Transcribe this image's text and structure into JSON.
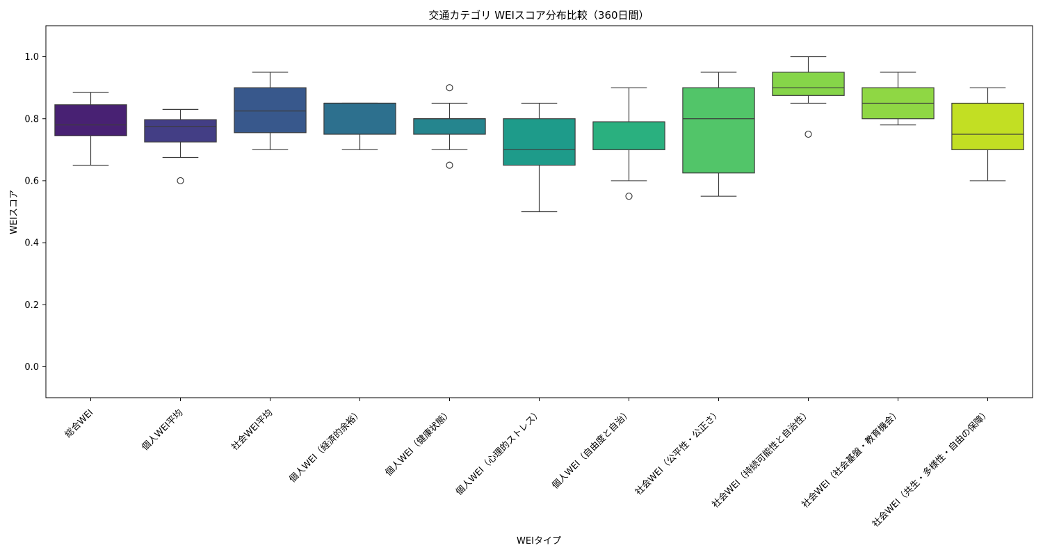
{
  "chart_data": {
    "type": "box",
    "title": "交通カテゴリ WEIスコア分布比較（360日間）",
    "xlabel": "WEIタイプ",
    "ylabel": "WEIスコア",
    "ylim": [
      -0.1,
      1.1
    ],
    "yticks": [
      "0.0",
      "0.2",
      "0.4",
      "0.6",
      "0.8",
      "1.0"
    ],
    "grid": false,
    "legend": "none",
    "categories": [
      "総合WEI",
      "個人WEI平均",
      "社会WEI平均",
      "個人WEI（経済的余裕）",
      "個人WEI（健康状態）",
      "個人WEI（心理的ストレス）",
      "個人WEI（自由度と自治）",
      "社会WEI（公平性・公正さ）",
      "社会WEI（持続可能性と自治性）",
      "社会WEI（社会基盤・教育機会）",
      "社会WEI（共生・多様性・自由の保障）"
    ],
    "boxes": [
      {
        "whisker_low": 0.65,
        "q1": 0.745,
        "median": 0.78,
        "q3": 0.845,
        "whisker_high": 0.885,
        "outliers": [],
        "color": "#482173"
      },
      {
        "whisker_low": 0.675,
        "q1": 0.725,
        "median": 0.775,
        "q3": 0.797,
        "whisker_high": 0.83,
        "outliers": [
          0.6
        ],
        "color": "#433e85"
      },
      {
        "whisker_low": 0.7,
        "q1": 0.755,
        "median": 0.825,
        "q3": 0.9,
        "whisker_high": 0.95,
        "outliers": [],
        "color": "#38588c"
      },
      {
        "whisker_low": 0.7,
        "q1": 0.75,
        "median": 0.85,
        "q3": 0.85,
        "whisker_high": 0.85,
        "outliers": [],
        "color": "#2d708e"
      },
      {
        "whisker_low": 0.7,
        "q1": 0.75,
        "median": 0.8,
        "q3": 0.8,
        "whisker_high": 0.85,
        "outliers": [
          0.65,
          0.9
        ],
        "color": "#25858e"
      },
      {
        "whisker_low": 0.5,
        "q1": 0.65,
        "median": 0.7,
        "q3": 0.8,
        "whisker_high": 0.85,
        "outliers": [],
        "color": "#1e9b8a"
      },
      {
        "whisker_low": 0.6,
        "q1": 0.7,
        "median": 0.79,
        "q3": 0.79,
        "whisker_high": 0.9,
        "outliers": [
          0.55
        ],
        "color": "#2ab07f"
      },
      {
        "whisker_low": 0.55,
        "q1": 0.625,
        "median": 0.8,
        "q3": 0.9,
        "whisker_high": 0.95,
        "outliers": [],
        "color": "#52c569"
      },
      {
        "whisker_low": 0.85,
        "q1": 0.875,
        "median": 0.9,
        "q3": 0.95,
        "whisker_high": 1.0,
        "outliers": [
          0.75
        ],
        "color": "#86d549"
      },
      {
        "whisker_low": 0.78,
        "q1": 0.8,
        "median": 0.85,
        "q3": 0.9,
        "whisker_high": 0.95,
        "outliers": [],
        "color": "#8fd744"
      },
      {
        "whisker_low": 0.6,
        "q1": 0.7,
        "median": 0.75,
        "q3": 0.85,
        "whisker_high": 0.9,
        "outliers": [],
        "color": "#c2df23"
      }
    ]
  }
}
